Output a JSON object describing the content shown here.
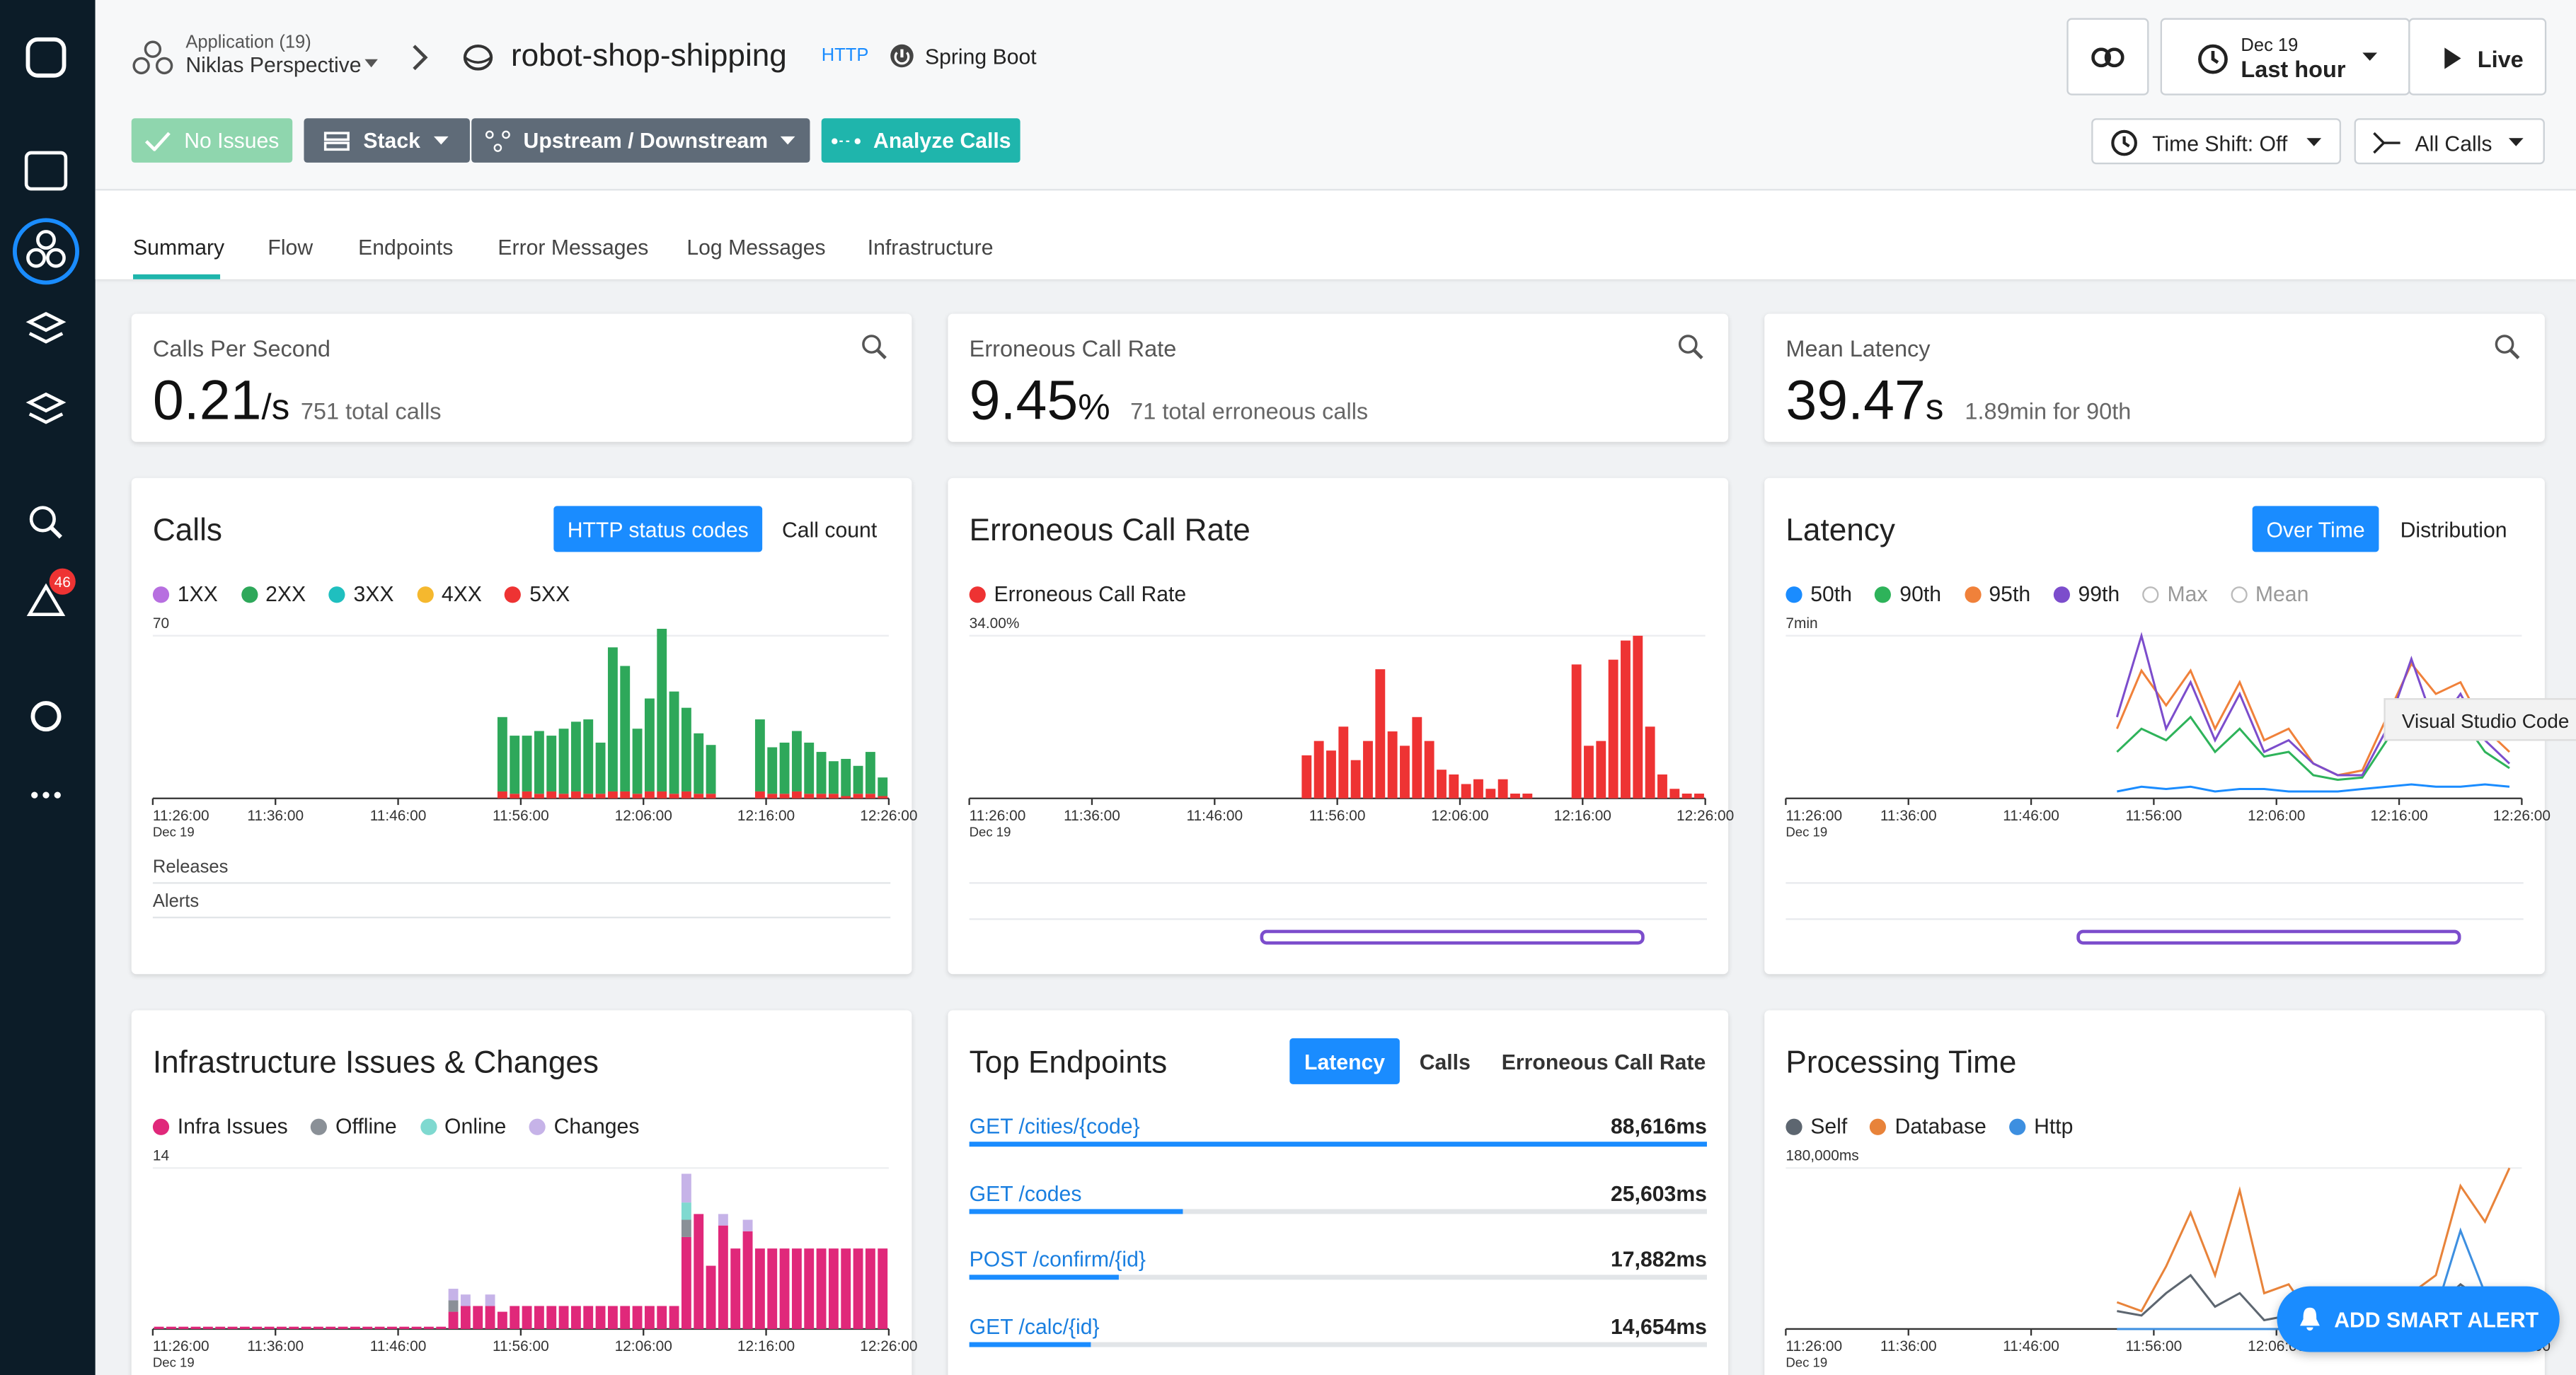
{
  "sidebar": {
    "alert_badge": "46"
  },
  "header": {
    "app_label": "Application (19)",
    "perspective": "Niklas Perspective",
    "service": "robot-shop-shipping",
    "protocol": "HTTP",
    "technology": "Spring Boot",
    "date": "Dec 19",
    "time_range": "Last hour",
    "live": "Live"
  },
  "toolbar": {
    "buttons": [
      "No Issues",
      "Stack",
      "Upstream / Downstream",
      "Analyze Calls"
    ],
    "time_shift": "Time Shift: Off",
    "call_filter": "All Calls"
  },
  "tabs": [
    "Summary",
    "Flow",
    "Endpoints",
    "Error Messages",
    "Log Messages",
    "Infrastructure"
  ],
  "kpis": [
    {
      "label": "Calls Per Second",
      "value": "0.21",
      "unit": "/s",
      "note": "751 total calls"
    },
    {
      "label": "Erroneous Call Rate",
      "value": "9.45",
      "unit": "%",
      "note": "71 total erroneous calls"
    },
    {
      "label": "Mean Latency",
      "value": "39.47",
      "unit": "s",
      "note": "1.89min for 90th"
    }
  ],
  "chart_data": [
    {
      "type": "bar",
      "title": "Calls",
      "toggles": [
        "HTTP status codes",
        "Call count"
      ],
      "rows": [
        "Releases",
        "Alerts"
      ],
      "x": [
        "11:54:00",
        "11:55:00",
        "11:56:00",
        "11:57:00",
        "11:58:00",
        "11:59:00",
        "12:00:00",
        "12:01:00",
        "12:02:00",
        "12:03:00",
        "12:04:00",
        "12:05:00",
        "12:06:00",
        "12:07:00",
        "12:08:00",
        "12:09:00",
        "12:10:00",
        "12:11:00",
        "12:15:00",
        "12:16:00",
        "12:17:00",
        "12:18:00",
        "12:19:00",
        "12:20:00",
        "12:21:00",
        "12:22:00",
        "12:23:00",
        "12:24:00",
        "12:25:00"
      ],
      "xlim": [
        "11:26:00",
        "12:26:00"
      ],
      "xticks": [
        "11:26:00",
        "11:36:00",
        "11:46:00",
        "11:56:00",
        "12:06:00",
        "12:16:00",
        "12:26:00"
      ],
      "xtick_date": "Dec 19",
      "ylim": [
        0,
        70
      ],
      "yticks": [
        70
      ],
      "series": [
        {
          "name": "1XX",
          "color": "#b76fe0",
          "values": [
            0,
            0,
            0,
            0,
            0,
            0,
            0,
            0,
            0,
            0,
            0,
            0,
            0,
            0,
            0,
            0,
            0,
            0,
            0,
            0,
            0,
            0,
            0,
            0,
            0,
            0,
            0,
            0,
            0
          ]
        },
        {
          "name": "2XX",
          "color": "#2ea85a",
          "values": [
            32,
            25,
            24,
            27,
            24,
            28,
            30,
            32,
            22,
            62,
            54,
            28,
            40,
            70,
            44,
            36,
            26,
            21,
            31,
            20,
            22,
            26,
            22,
            18,
            14,
            16,
            12,
            18,
            8
          ]
        },
        {
          "name": "3XX",
          "color": "#1fbfbf",
          "values": [
            0,
            0,
            0,
            0,
            0,
            0,
            0,
            0,
            0,
            0,
            0,
            0,
            0,
            0,
            0,
            0,
            0,
            0,
            0,
            0,
            0,
            0,
            0,
            0,
            0,
            0,
            0,
            0,
            0
          ]
        },
        {
          "name": "4XX",
          "color": "#f5b82e",
          "values": [
            0,
            0,
            0,
            0,
            0,
            0,
            0,
            0,
            0,
            0,
            0,
            0,
            0,
            0,
            0,
            0,
            0,
            0,
            0,
            0,
            0,
            0,
            0,
            0,
            0,
            0,
            0,
            0,
            0
          ]
        },
        {
          "name": "5XX",
          "color": "#ee3333",
          "values": [
            3,
            2,
            3,
            2,
            3,
            2,
            3,
            2,
            2,
            3,
            3,
            2,
            3,
            3,
            2,
            3,
            2,
            2,
            3,
            2,
            2,
            3,
            2,
            2,
            2,
            1,
            2,
            2,
            1
          ]
        }
      ]
    },
    {
      "type": "bar",
      "title": "Erroneous Call Rate",
      "x": [
        "11:53:00",
        "11:54:00",
        "11:55:00",
        "11:56:00",
        "11:57:00",
        "11:58:00",
        "11:59:00",
        "12:00:00",
        "12:01:00",
        "12:02:00",
        "12:03:00",
        "12:04:00",
        "12:05:00",
        "12:06:00",
        "12:07:00",
        "12:08:00",
        "12:09:00",
        "12:10:00",
        "12:11:00",
        "12:15:00",
        "12:16:00",
        "12:17:00",
        "12:18:00",
        "12:19:00",
        "12:20:00",
        "12:21:00",
        "12:22:00",
        "12:23:00",
        "12:24:00",
        "12:25:00"
      ],
      "xlim": [
        "11:26:00",
        "12:26:00"
      ],
      "xticks": [
        "11:26:00",
        "11:36:00",
        "11:46:00",
        "11:56:00",
        "12:06:00",
        "12:16:00",
        "12:26:00"
      ],
      "xtick_date": "Dec 19",
      "ylim": [
        0,
        34
      ],
      "yticks": [
        {
          "value": 34,
          "label": "34.00%"
        }
      ],
      "series": [
        {
          "name": "Erroneous Call Rate",
          "color": "#ee3333",
          "values": [
            9,
            12,
            10,
            15,
            8,
            12,
            27,
            14,
            11,
            17,
            12,
            6,
            5,
            3,
            4,
            2,
            4,
            1,
            1,
            28,
            11,
            12,
            29,
            33,
            34,
            15,
            5,
            2,
            1,
            1
          ]
        }
      ]
    },
    {
      "type": "line",
      "title": "Latency",
      "toggles": [
        "Over Time",
        "Distribution"
      ],
      "x": [
        "11:53:00",
        "11:55:00",
        "11:57:00",
        "11:59:00",
        "12:01:00",
        "12:03:00",
        "12:05:00",
        "12:07:00",
        "12:09:00",
        "12:11:00",
        "12:13:00",
        "12:15:00",
        "12:17:00",
        "12:19:00",
        "12:21:00",
        "12:23:00",
        "12:25:00"
      ],
      "xlim": [
        "11:26:00",
        "12:26:00"
      ],
      "xticks": [
        "11:26:00",
        "11:36:00",
        "11:46:00",
        "11:56:00",
        "12:06:00",
        "12:16:00",
        "12:26:00"
      ],
      "xtick_date": "Dec 19",
      "ylim": [
        0,
        7
      ],
      "yticks": [
        {
          "value": 7,
          "label": "7min"
        }
      ],
      "series": [
        {
          "name": "50th",
          "color": "#1a8cff",
          "enabled": true,
          "values": [
            0.3,
            0.5,
            0.4,
            0.5,
            0.3,
            0.4,
            0.4,
            0.3,
            0.3,
            0.3,
            0.4,
            0.5,
            0.6,
            0.5,
            0.5,
            0.6,
            0.5
          ]
        },
        {
          "name": "90th",
          "color": "#2eb35a",
          "enabled": true,
          "values": [
            2,
            3,
            2.5,
            3.5,
            2,
            3,
            1.8,
            2,
            1,
            0.8,
            0.9,
            2.5,
            4,
            3,
            3.5,
            2,
            1.3
          ]
        },
        {
          "name": "95th",
          "color": "#f0813a",
          "enabled": true,
          "values": [
            3,
            5.5,
            4,
            5.5,
            3,
            5,
            2.5,
            3,
            1.5,
            1,
            1.2,
            3.5,
            5.8,
            4.5,
            5,
            3,
            2
          ]
        },
        {
          "name": "99th",
          "color": "#7c4dcc",
          "enabled": true,
          "values": [
            3.5,
            7,
            3,
            5,
            2.5,
            4.5,
            2,
            2.5,
            1.5,
            1,
            1,
            3,
            6,
            3,
            4.5,
            2.5,
            1.5
          ]
        },
        {
          "name": "Max",
          "color": "#bbbbbb",
          "enabled": false,
          "values": [
            null,
            null,
            null,
            null,
            null,
            null,
            null,
            null,
            null,
            null,
            null,
            null,
            null,
            null,
            null,
            null,
            null
          ]
        },
        {
          "name": "Mean",
          "color": "#bbbbbb",
          "enabled": false,
          "values": [
            null,
            null,
            null,
            null,
            null,
            null,
            null,
            null,
            null,
            null,
            null,
            null,
            null,
            null,
            null,
            null,
            null
          ]
        }
      ]
    },
    {
      "type": "bar",
      "title": "Infrastructure Issues & Changes",
      "x": [
        "11:26:00",
        "11:27:00",
        "11:28:00",
        "11:29:00",
        "11:30:00",
        "11:31:00",
        "11:32:00",
        "11:33:00",
        "11:34:00",
        "11:35:00",
        "11:36:00",
        "11:37:00",
        "11:38:00",
        "11:39:00",
        "11:40:00",
        "11:41:00",
        "11:42:00",
        "11:43:00",
        "11:44:00",
        "11:45:00",
        "11:46:00",
        "11:47:00",
        "11:48:00",
        "11:49:00",
        "11:50:00",
        "11:51:00",
        "11:52:00",
        "11:53:00",
        "11:54:00",
        "11:55:00",
        "11:56:00",
        "11:57:00",
        "11:58:00",
        "11:59:00",
        "12:00:00",
        "12:01:00",
        "12:02:00",
        "12:03:00",
        "12:04:00",
        "12:05:00",
        "12:06:00",
        "12:07:00",
        "12:08:00",
        "12:09:00",
        "12:10:00",
        "12:11:00",
        "12:12:00",
        "12:13:00",
        "12:14:00",
        "12:15:00",
        "12:16:00",
        "12:17:00",
        "12:18:00",
        "12:19:00",
        "12:20:00",
        "12:21:00",
        "12:22:00",
        "12:23:00",
        "12:24:00",
        "12:25:00"
      ],
      "xlim": [
        "11:26:00",
        "12:26:00"
      ],
      "xticks": [
        "11:26:00",
        "11:36:00",
        "11:46:00",
        "11:56:00",
        "12:06:00",
        "12:16:00",
        "12:26:00"
      ],
      "xtick_date": "Dec 19",
      "ylim": [
        0,
        14
      ],
      "yticks": [
        14
      ],
      "series": [
        {
          "name": "Infra Issues",
          "color": "#e0287a",
          "values": [
            0.2,
            0.2,
            0.2,
            0.2,
            0.2,
            0.2,
            0.2,
            0.2,
            0.2,
            0.2,
            0.2,
            0.2,
            0.2,
            0.2,
            0.2,
            0.2,
            0.2,
            0.2,
            0.2,
            0.2,
            0.2,
            0.2,
            0.2,
            0.2,
            1.5,
            2,
            2,
            2,
            1.5,
            2,
            2,
            2,
            2,
            2,
            2,
            2,
            2,
            2,
            2,
            2,
            2,
            2,
            2,
            8,
            10,
            5.5,
            9,
            7,
            8.5,
            7,
            7,
            7,
            7,
            7,
            7,
            7,
            7,
            7,
            7,
            7
          ]
        },
        {
          "name": "Offline",
          "color": "#8a9097",
          "values": [
            0,
            0,
            0,
            0,
            0,
            0,
            0,
            0,
            0,
            0,
            0,
            0,
            0,
            0,
            0,
            0,
            0,
            0,
            0,
            0,
            0,
            0,
            0,
            0,
            1,
            0,
            0,
            0,
            0,
            0,
            0,
            0,
            0,
            0,
            0,
            0,
            0,
            0,
            0,
            0,
            0,
            0,
            0,
            1.5,
            0,
            0,
            0,
            0,
            0,
            0,
            0,
            0,
            0,
            0,
            0,
            0,
            0,
            0,
            0,
            0
          ]
        },
        {
          "name": "Online",
          "color": "#7fd9d0",
          "values": [
            0,
            0,
            0,
            0,
            0,
            0,
            0,
            0,
            0,
            0,
            0,
            0,
            0,
            0,
            0,
            0,
            0,
            0,
            0,
            0,
            0,
            0,
            0,
            0,
            0,
            0,
            0,
            0,
            0,
            0,
            0,
            0,
            0,
            0,
            0,
            0,
            0,
            0,
            0,
            0,
            0,
            0,
            0,
            1.5,
            0,
            0,
            0,
            0,
            0,
            0,
            0,
            0,
            0,
            0,
            0,
            0,
            0,
            0,
            0,
            0
          ]
        },
        {
          "name": "Changes",
          "color": "#c6b3e8",
          "values": [
            0,
            0,
            0,
            0,
            0,
            0,
            0,
            0,
            0,
            0,
            0,
            0,
            0,
            0,
            0,
            0,
            0,
            0,
            0,
            0,
            0,
            0,
            0,
            0,
            1,
            1,
            0,
            1,
            0,
            0,
            0,
            0,
            0,
            0,
            0,
            0,
            0,
            0,
            0,
            0,
            0,
            0,
            0,
            2.5,
            0,
            0,
            1,
            0,
            1,
            0,
            0,
            0,
            0,
            0,
            0,
            0,
            0,
            0,
            0,
            0
          ]
        }
      ]
    },
    {
      "type": "line",
      "title": "Processing Time",
      "x": [
        "11:53:00",
        "11:55:00",
        "11:57:00",
        "11:59:00",
        "12:01:00",
        "12:03:00",
        "12:05:00",
        "12:07:00",
        "12:09:00",
        "12:11:00",
        "12:13:00",
        "12:15:00",
        "12:17:00",
        "12:19:00",
        "12:21:00",
        "12:23:00",
        "12:25:00"
      ],
      "xlim": [
        "11:26:00",
        "12:26:00"
      ],
      "xticks": [
        "11:26:00",
        "11:36:00",
        "11:46:00",
        "11:56:00",
        "12:06:00",
        "12:16:00",
        "12:26:00"
      ],
      "xtick_date": "Dec 19",
      "ylim": [
        0,
        180000
      ],
      "yticks": [
        {
          "value": 180000,
          "label": "180,000ms"
        }
      ],
      "series": [
        {
          "name": "Self",
          "color": "#5d6670",
          "values": [
            20000,
            15000,
            40000,
            60000,
            25000,
            40000,
            10000,
            15000,
            3000,
            2000,
            2000,
            10000,
            20000,
            25000,
            50000,
            30000,
            20000
          ]
        },
        {
          "name": "Database",
          "color": "#e8833a",
          "values": [
            30000,
            20000,
            70000,
            130000,
            60000,
            155000,
            40000,
            50000,
            10000,
            5000,
            5000,
            20000,
            40000,
            60000,
            160000,
            120000,
            180000
          ]
        },
        {
          "name": "Http",
          "color": "#3d8fe0",
          "values": [
            0,
            0,
            0,
            0,
            0,
            0,
            0,
            0,
            0,
            0,
            0,
            0,
            5000,
            20000,
            110000,
            40000,
            10000
          ]
        }
      ]
    }
  ],
  "top_endpoints": {
    "title": "Top Endpoints",
    "toggles": [
      "Latency",
      "Calls",
      "Erroneous Call Rate"
    ],
    "rows": [
      {
        "name": "GET /cities/{code}",
        "value": 88616,
        "value_label": "88,616ms"
      },
      {
        "name": "GET /codes",
        "value": 25603,
        "value_label": "25,603ms"
      },
      {
        "name": "POST /confirm/{id}",
        "value": 17882,
        "value_label": "17,882ms"
      },
      {
        "name": "GET /calc/{id}",
        "value": 14654,
        "value_label": "14,654ms"
      }
    ]
  },
  "tooltip": "Visual Studio Code",
  "smart_alert": "ADD SMART ALERT"
}
